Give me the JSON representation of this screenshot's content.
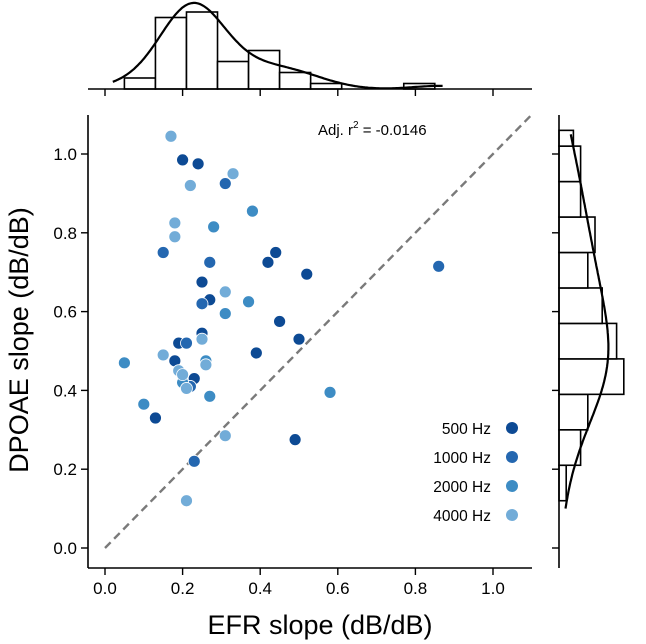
{
  "chart_data": {
    "type": "scatter",
    "title": "",
    "xlabel": "EFR slope (dB/dB)",
    "ylabel": "DPOAE slope (dB/dB)",
    "xlim": [
      -0.05,
      1.1
    ],
    "ylim": [
      0.0,
      1.1
    ],
    "x_ticks": [
      "0.0",
      "0.2",
      "0.4",
      "0.6",
      "0.8",
      "1.0"
    ],
    "y_ticks": [
      "0.0",
      "0.2",
      "0.4",
      "0.6",
      "0.8",
      "1.0"
    ],
    "annotation": {
      "prefix": "Adj. r",
      "sup": "2",
      "suffix": " = -0.0146"
    },
    "reference_line": "y = x (dashed)",
    "legend_position": "bottom-right",
    "series": [
      {
        "name": "500 Hz",
        "color": "#0d4a94",
        "points": [
          [
            0.13,
            0.33
          ],
          [
            0.18,
            0.475
          ],
          [
            0.19,
            0.52
          ],
          [
            0.23,
            0.43
          ],
          [
            0.25,
            0.675
          ],
          [
            0.27,
            0.63
          ],
          [
            0.45,
            0.575
          ],
          [
            0.39,
            0.495
          ],
          [
            0.5,
            0.53
          ],
          [
            0.49,
            0.275
          ],
          [
            0.44,
            0.75
          ],
          [
            0.42,
            0.725
          ],
          [
            0.24,
            0.975
          ],
          [
            0.2,
            0.985
          ],
          [
            0.52,
            0.695
          ],
          [
            0.25,
            0.545
          ]
        ]
      },
      {
        "name": "1000 Hz",
        "color": "#2467b0",
        "points": [
          [
            0.15,
            0.75
          ],
          [
            0.21,
            0.52
          ],
          [
            0.25,
            0.62
          ],
          [
            0.31,
            0.925
          ],
          [
            0.27,
            0.725
          ],
          [
            0.86,
            0.715
          ],
          [
            0.23,
            0.22
          ],
          [
            0.22,
            0.41
          ]
        ]
      },
      {
        "name": "2000 Hz",
        "color": "#3d8cc4",
        "points": [
          [
            0.05,
            0.47
          ],
          [
            0.1,
            0.365
          ],
          [
            0.28,
            0.815
          ],
          [
            0.31,
            0.595
          ],
          [
            0.37,
            0.625
          ],
          [
            0.38,
            0.855
          ],
          [
            0.27,
            0.385
          ],
          [
            0.58,
            0.395
          ],
          [
            0.26,
            0.475
          ],
          [
            0.2,
            0.42
          ]
        ]
      },
      {
        "name": "4000 Hz",
        "color": "#72acd8",
        "points": [
          [
            0.17,
            1.045
          ],
          [
            0.33,
            0.95
          ],
          [
            0.22,
            0.92
          ],
          [
            0.18,
            0.825
          ],
          [
            0.18,
            0.79
          ],
          [
            0.15,
            0.49
          ],
          [
            0.19,
            0.45
          ],
          [
            0.2,
            0.44
          ],
          [
            0.26,
            0.465
          ],
          [
            0.25,
            0.53
          ],
          [
            0.31,
            0.65
          ],
          [
            0.31,
            0.285
          ],
          [
            0.21,
            0.12
          ],
          [
            0.21,
            0.405
          ]
        ]
      }
    ],
    "top_histogram": {
      "bin_edges": [
        0.05,
        0.13,
        0.21,
        0.29,
        0.37,
        0.45,
        0.53,
        0.61,
        0.69,
        0.77,
        0.85
      ],
      "counts": [
        2,
        13,
        14,
        5,
        7,
        3,
        1,
        0,
        0,
        1
      ]
    },
    "right_histogram": {
      "bin_edges": [
        0.12,
        0.21,
        0.3,
        0.39,
        0.48,
        0.57,
        0.66,
        0.75,
        0.84,
        0.93,
        1.02,
        1.06
      ],
      "counts": [
        1,
        3,
        4,
        9,
        8,
        6,
        4,
        5,
        3,
        3,
        2
      ]
    }
  }
}
